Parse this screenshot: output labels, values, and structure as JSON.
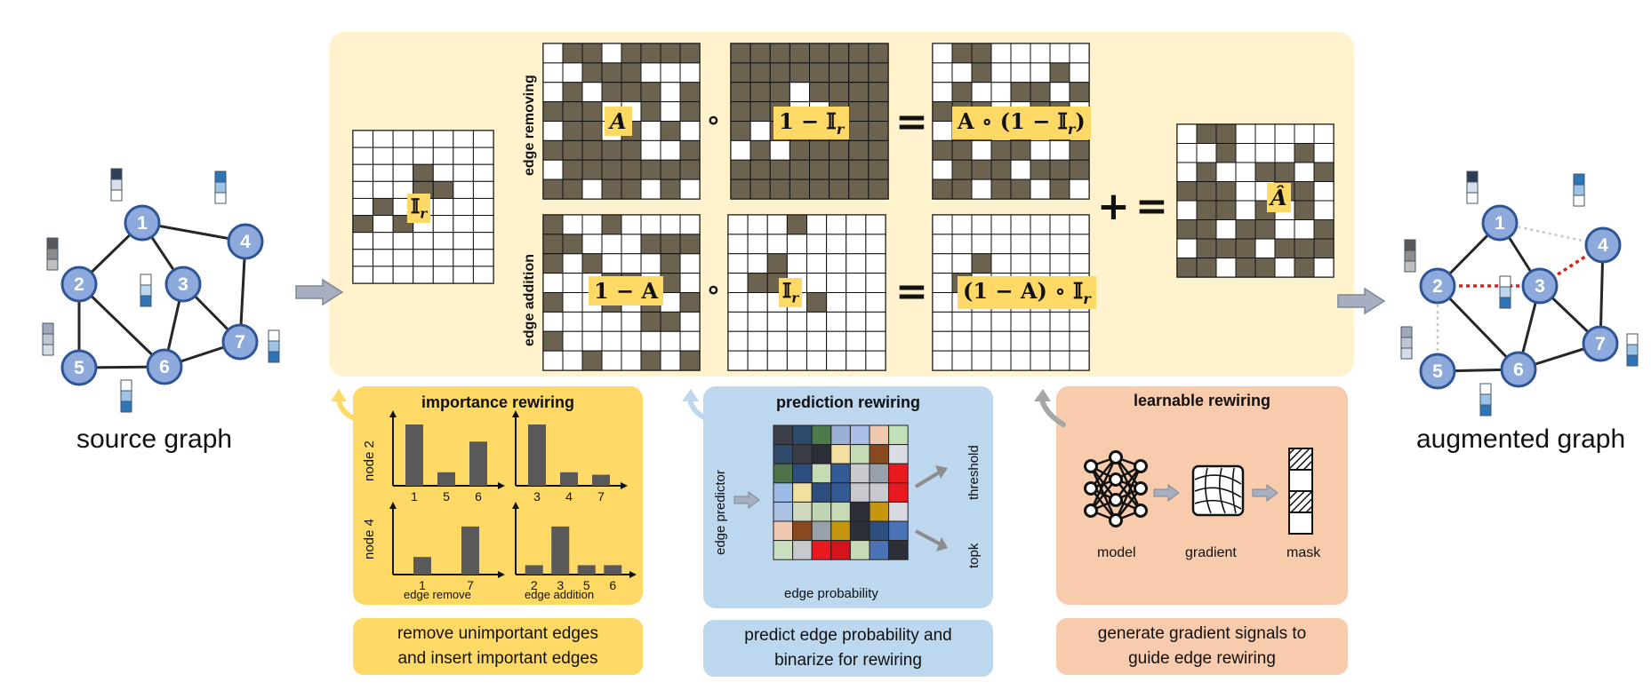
{
  "source_caption": "source graph",
  "augmented_caption": "augmented graph",
  "equations": {
    "remove_label": "edge removing",
    "add_label": "edge addition",
    "indicator": "𝕀",
    "indicator_sub": "r",
    "A": "A",
    "one_minus_indicator": "𝟏 − 𝕀",
    "rem_result": "A ∘ (𝟏 − 𝕀",
    "one_minus_A": "𝟏 − A",
    "add_result": "(𝟏 − A) ∘ 𝕀",
    "A_hat": "Â",
    "circ": "∘",
    "equals": "=",
    "plus": "+"
  },
  "importance": {
    "title": "importance rewiring",
    "node2": "node 2",
    "node4": "node 4",
    "edge_remove": "edge remove",
    "edge_addition": "edge addition",
    "charts": [
      {
        "labels": [
          "1",
          "5",
          "6"
        ],
        "values": [
          1.0,
          0.22,
          0.72
        ]
      },
      {
        "labels": [
          "3",
          "4",
          "7"
        ],
        "values": [
          1.0,
          0.22,
          0.18
        ]
      },
      {
        "labels": [
          "1",
          "7"
        ],
        "values": [
          0.3,
          0.82
        ]
      },
      {
        "labels": [
          "2",
          "3",
          "5",
          "6"
        ],
        "values": [
          0.16,
          0.82,
          0.16,
          0.16
        ]
      }
    ],
    "description": [
      "remove unimportant edges",
      "and insert important edges"
    ]
  },
  "prediction": {
    "title": "prediction rewiring",
    "edge_predictor": "edge predictor",
    "threshold": "threshold",
    "topk": "topk",
    "edge_probability": "edge probability",
    "description": [
      "predict edge probability and",
      "binarize for rewiring"
    ]
  },
  "learnable": {
    "title": "learnable rewiring",
    "model": "model",
    "gradient": "gradient",
    "mask": "mask",
    "description": [
      "generate gradient signals to",
      "guide edge rewiring"
    ]
  },
  "colors": {
    "node_fill": "#8ea9db",
    "node_stroke": "#2f5597",
    "matrix_dark": "#6b6350",
    "panel_tan": "#fff2cc",
    "panel_yellow": "#ffd966",
    "panel_blue": "#bdd7ee",
    "panel_salmon": "#f8cbad",
    "edge_red": "#e0201b",
    "arrow_gray": "#a6aebf"
  },
  "graphs": {
    "source": {
      "nodes": [
        "1",
        "2",
        "3",
        "4",
        "5",
        "6",
        "7"
      ],
      "edges": [
        [
          "1",
          "2"
        ],
        [
          "1",
          "3"
        ],
        [
          "1",
          "4"
        ],
        [
          "2",
          "5"
        ],
        [
          "2",
          "6"
        ],
        [
          "3",
          "6"
        ],
        [
          "3",
          "7"
        ],
        [
          "4",
          "7"
        ],
        [
          "5",
          "6"
        ],
        [
          "6",
          "7"
        ]
      ]
    },
    "augmented": {
      "nodes": [
        "1",
        "2",
        "3",
        "4",
        "5",
        "6",
        "7"
      ],
      "edges": [
        [
          "1",
          "2"
        ],
        [
          "1",
          "3"
        ],
        [
          "2",
          "6"
        ],
        [
          "3",
          "6"
        ],
        [
          "3",
          "7"
        ],
        [
          "4",
          "7"
        ],
        [
          "5",
          "6"
        ],
        [
          "6",
          "7"
        ]
      ],
      "removed_edges": [
        [
          "1",
          "4"
        ],
        [
          "2",
          "5"
        ]
      ],
      "added_edges": [
        [
          "2",
          "3"
        ],
        [
          "3",
          "4"
        ]
      ]
    }
  }
}
